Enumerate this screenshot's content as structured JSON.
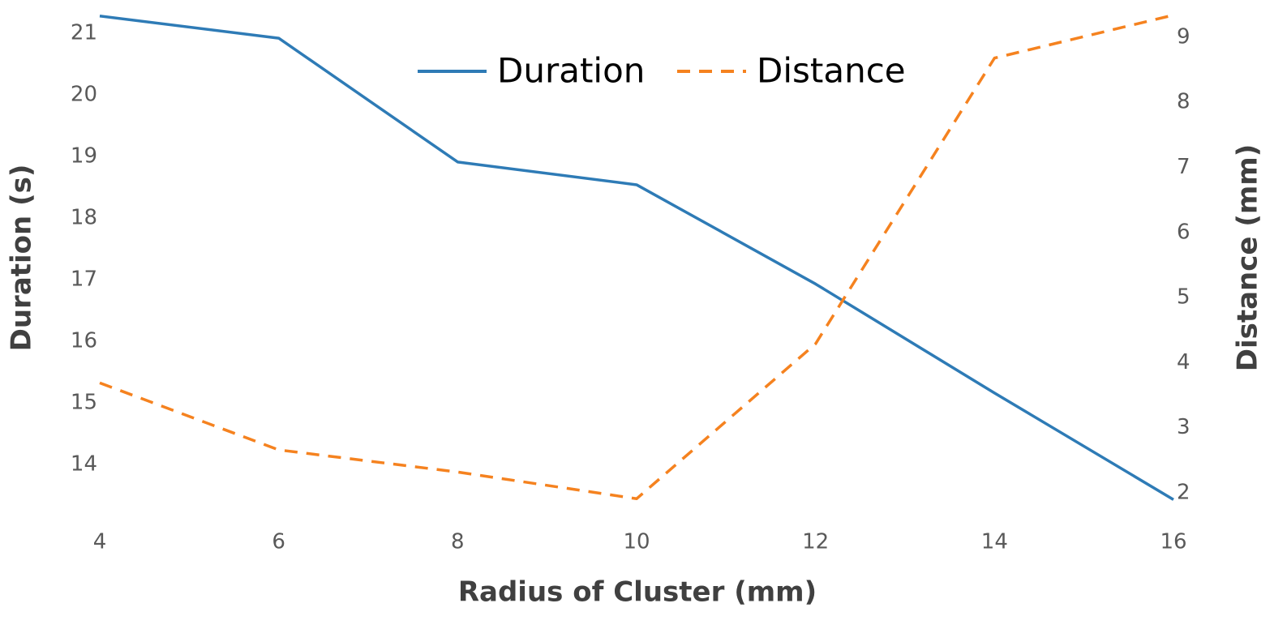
{
  "chart_data": {
    "type": "line",
    "x": [
      4,
      6,
      8,
      10,
      12,
      14,
      16
    ],
    "xlabel": "Radius of Cluster (mm)",
    "ylabel": "Duration (s)",
    "y2label": "Distance (mm)",
    "series": [
      {
        "name": "Duration",
        "color": "#2e7bb6",
        "dash": "solid",
        "values": [
          21.28,
          20.92,
          18.91,
          18.54,
          16.93,
          15.16,
          13.43
        ]
      },
      {
        "name": "Distance",
        "color": "#f5821f",
        "dash": "dashed",
        "axis": "y2",
        "values": [
          3.69,
          2.66,
          2.32,
          1.91,
          4.29,
          8.68,
          9.34
        ]
      }
    ],
    "xlim": [
      4,
      16
    ],
    "xticks": [
      4,
      6,
      8,
      10,
      12,
      14,
      16
    ],
    "ylim": [
      13,
      21.4
    ],
    "yticks": [
      14,
      15,
      16,
      17,
      18,
      19,
      20,
      21
    ],
    "y2lim": [
      1.49,
      9.44
    ],
    "y2ticks": [
      2,
      3,
      4,
      5,
      6,
      7,
      8,
      9
    ],
    "grid": false,
    "legend": "top"
  }
}
